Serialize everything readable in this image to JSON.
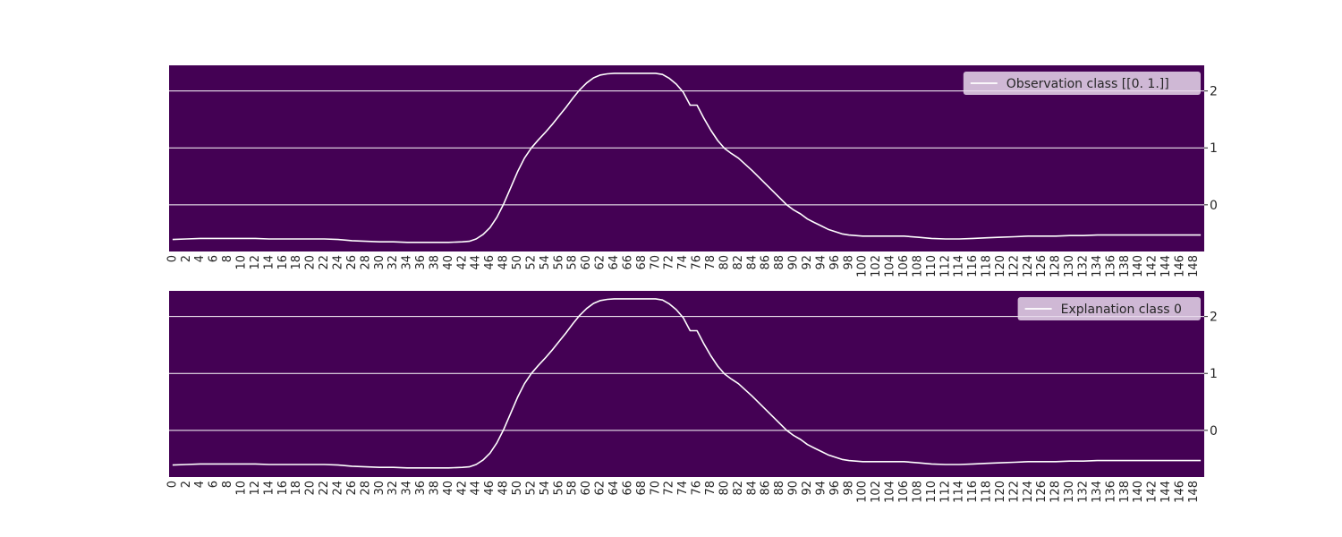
{
  "colors": {
    "plot_background": "#440154",
    "line": "#ffffff",
    "grid": "#ffffff",
    "legend_background": "#e8d8ec",
    "text": "#262626"
  },
  "chart_data": [
    {
      "type": "line",
      "title": "",
      "xlabel": "",
      "ylabel": "",
      "legend_position": "top-right",
      "x_ticks": [
        0,
        2,
        4,
        6,
        8,
        10,
        12,
        14,
        16,
        18,
        20,
        22,
        24,
        26,
        28,
        30,
        32,
        34,
        36,
        38,
        40,
        42,
        44,
        46,
        48,
        50,
        52,
        54,
        56,
        58,
        60,
        62,
        64,
        66,
        68,
        70,
        72,
        74,
        76,
        78,
        80,
        82,
        84,
        86,
        88,
        90,
        92,
        94,
        96,
        98,
        100,
        102,
        104,
        106,
        108,
        110,
        112,
        114,
        116,
        118,
        120,
        122,
        124,
        126,
        128,
        130,
        132,
        134,
        136,
        138,
        140,
        142,
        144,
        146,
        148
      ],
      "y_ticks": [
        0,
        1,
        2
      ],
      "xlim": [
        0,
        150
      ],
      "ylim": [
        -0.82,
        2.45
      ],
      "grid": "horizontal",
      "y_axis_side": "right",
      "series": [
        {
          "name": "Observation class [[0. 1.]]",
          "x": [
            0,
            2,
            4,
            6,
            8,
            10,
            12,
            14,
            16,
            18,
            20,
            22,
            24,
            26,
            28,
            30,
            32,
            34,
            36,
            38,
            40,
            42,
            43,
            44,
            45,
            46,
            47,
            48,
            49,
            50,
            51,
            52,
            53,
            54,
            55,
            56,
            57,
            58,
            59,
            60,
            61,
            62,
            63,
            64,
            66,
            68,
            70,
            71,
            72,
            73,
            74,
            75,
            76,
            77,
            78,
            79,
            80,
            81,
            82,
            83,
            84,
            85,
            86,
            87,
            88,
            89,
            90,
            91,
            92,
            93,
            94,
            95,
            96,
            97,
            98,
            100,
            102,
            104,
            106,
            108,
            110,
            112,
            114,
            116,
            118,
            120,
            122,
            124,
            126,
            128,
            130,
            132,
            134,
            136,
            138,
            140,
            142,
            144,
            146,
            148,
            149
          ],
          "y": [
            -0.61,
            -0.6,
            -0.59,
            -0.59,
            -0.59,
            -0.59,
            -0.59,
            -0.6,
            -0.6,
            -0.6,
            -0.6,
            -0.6,
            -0.61,
            -0.63,
            -0.64,
            -0.65,
            -0.65,
            -0.66,
            -0.66,
            -0.66,
            -0.66,
            -0.65,
            -0.64,
            -0.6,
            -0.52,
            -0.4,
            -0.22,
            0.02,
            0.3,
            0.58,
            0.82,
            1.0,
            1.14,
            1.27,
            1.41,
            1.56,
            1.71,
            1.87,
            2.02,
            2.14,
            2.23,
            2.28,
            2.3,
            2.31,
            2.31,
            2.31,
            2.31,
            2.29,
            2.22,
            2.12,
            1.98,
            1.75,
            1.75,
            1.52,
            1.31,
            1.13,
            0.99,
            0.9,
            0.82,
            0.71,
            0.6,
            0.48,
            0.36,
            0.24,
            0.12,
            0.0,
            -0.09,
            -0.16,
            -0.25,
            -0.31,
            -0.37,
            -0.43,
            -0.47,
            -0.51,
            -0.53,
            -0.55,
            -0.55,
            -0.55,
            -0.55,
            -0.57,
            -0.59,
            -0.6,
            -0.6,
            -0.59,
            -0.58,
            -0.57,
            -0.56,
            -0.55,
            -0.55,
            -0.55,
            -0.54,
            -0.54,
            -0.53,
            -0.53,
            -0.53,
            -0.53,
            -0.53,
            -0.53,
            -0.53,
            -0.53,
            -0.53
          ]
        }
      ]
    },
    {
      "type": "line",
      "title": "",
      "xlabel": "",
      "ylabel": "",
      "legend_position": "top-right",
      "x_ticks": [
        0,
        2,
        4,
        6,
        8,
        10,
        12,
        14,
        16,
        18,
        20,
        22,
        24,
        26,
        28,
        30,
        32,
        34,
        36,
        38,
        40,
        42,
        44,
        46,
        48,
        50,
        52,
        54,
        56,
        58,
        60,
        62,
        64,
        66,
        68,
        70,
        72,
        74,
        76,
        78,
        80,
        82,
        84,
        86,
        88,
        90,
        92,
        94,
        96,
        98,
        100,
        102,
        104,
        106,
        108,
        110,
        112,
        114,
        116,
        118,
        120,
        122,
        124,
        126,
        128,
        130,
        132,
        134,
        136,
        138,
        140,
        142,
        144,
        146,
        148
      ],
      "y_ticks": [
        0,
        1,
        2
      ],
      "xlim": [
        0,
        150
      ],
      "ylim": [
        -0.82,
        2.45
      ],
      "grid": "horizontal",
      "y_axis_side": "right",
      "series": [
        {
          "name": "Explanation class 0",
          "x": [
            0,
            2,
            4,
            6,
            8,
            10,
            12,
            14,
            16,
            18,
            20,
            22,
            24,
            26,
            28,
            30,
            32,
            34,
            36,
            38,
            40,
            42,
            43,
            44,
            45,
            46,
            47,
            48,
            49,
            50,
            51,
            52,
            53,
            54,
            55,
            56,
            57,
            58,
            59,
            60,
            61,
            62,
            63,
            64,
            66,
            68,
            70,
            71,
            72,
            73,
            74,
            75,
            76,
            77,
            78,
            79,
            80,
            81,
            82,
            83,
            84,
            85,
            86,
            87,
            88,
            89,
            90,
            91,
            92,
            93,
            94,
            95,
            96,
            97,
            98,
            100,
            102,
            104,
            106,
            108,
            110,
            112,
            114,
            116,
            118,
            120,
            122,
            124,
            126,
            128,
            130,
            132,
            134,
            136,
            138,
            140,
            142,
            144,
            146,
            148,
            149
          ],
          "y": [
            -0.61,
            -0.6,
            -0.59,
            -0.59,
            -0.59,
            -0.59,
            -0.59,
            -0.6,
            -0.6,
            -0.6,
            -0.6,
            -0.6,
            -0.61,
            -0.63,
            -0.64,
            -0.65,
            -0.65,
            -0.66,
            -0.66,
            -0.66,
            -0.66,
            -0.65,
            -0.64,
            -0.6,
            -0.52,
            -0.4,
            -0.22,
            0.02,
            0.3,
            0.58,
            0.82,
            1.0,
            1.14,
            1.27,
            1.41,
            1.56,
            1.71,
            1.87,
            2.02,
            2.14,
            2.23,
            2.28,
            2.3,
            2.31,
            2.31,
            2.31,
            2.31,
            2.29,
            2.22,
            2.12,
            1.98,
            1.75,
            1.75,
            1.52,
            1.31,
            1.13,
            0.99,
            0.9,
            0.82,
            0.71,
            0.6,
            0.48,
            0.36,
            0.24,
            0.12,
            0.0,
            -0.09,
            -0.16,
            -0.25,
            -0.31,
            -0.37,
            -0.43,
            -0.47,
            -0.51,
            -0.53,
            -0.55,
            -0.55,
            -0.55,
            -0.55,
            -0.57,
            -0.59,
            -0.6,
            -0.6,
            -0.59,
            -0.58,
            -0.57,
            -0.56,
            -0.55,
            -0.55,
            -0.55,
            -0.54,
            -0.54,
            -0.53,
            -0.53,
            -0.53,
            -0.53,
            -0.53,
            -0.53,
            -0.53,
            -0.53,
            -0.53
          ]
        }
      ]
    }
  ]
}
